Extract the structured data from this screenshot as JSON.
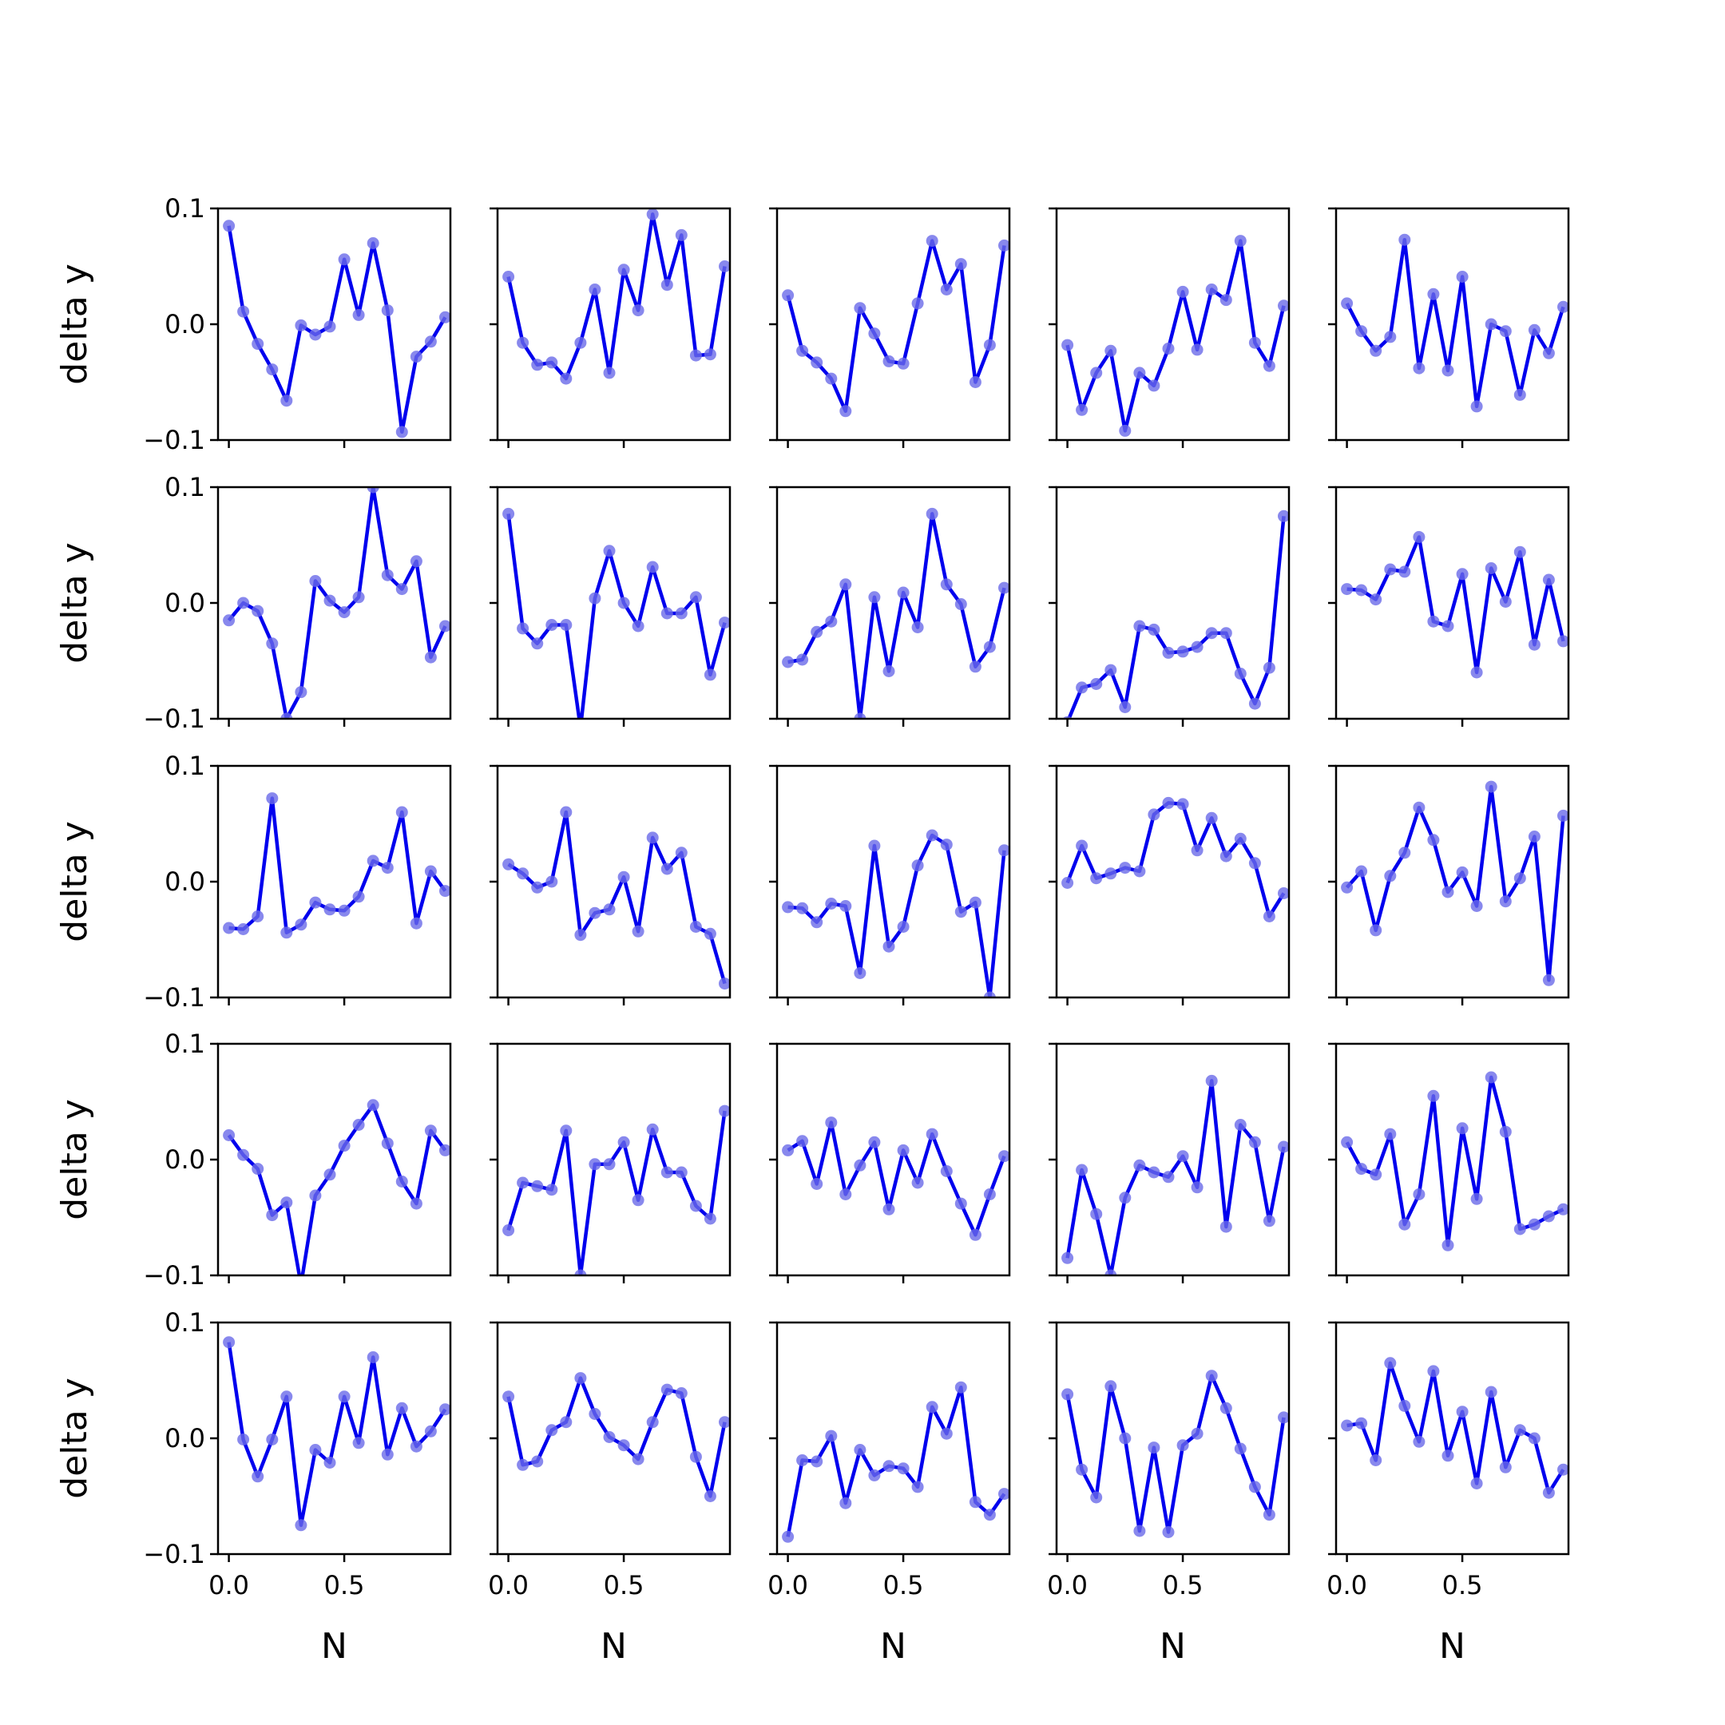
{
  "chart_data": {
    "type": "line",
    "grid": false,
    "rows": 5,
    "cols": 5,
    "x": [
      0,
      0.0625,
      0.125,
      0.1875,
      0.25,
      0.3125,
      0.375,
      0.4375,
      0.5,
      0.5625,
      0.625,
      0.6875,
      0.75,
      0.8125,
      0.875,
      0.9375
    ],
    "xlim": [
      -0.047,
      0.96
    ],
    "ylim": [
      -0.1,
      0.1
    ],
    "xticks": [
      0.0,
      0.5
    ],
    "xtick_labels": [
      "0.0",
      "0.5"
    ],
    "yticks": [
      -0.1,
      0.0,
      0.1
    ],
    "ytick_labels": [
      "−0.1",
      "0.0",
      "0.1"
    ],
    "xlabel": "N",
    "ylabel": "delta y",
    "line_color": "#0000ee",
    "marker_color": "#6a6ae8",
    "panels": [
      [
        0.085,
        0.011,
        -0.017,
        -0.039,
        -0.066,
        -0.001,
        -0.009,
        -0.002,
        0.056,
        0.008,
        0.07,
        0.012,
        -0.093,
        -0.028,
        -0.015,
        0.006
      ],
      [
        0.041,
        -0.016,
        -0.035,
        -0.033,
        -0.047,
        -0.016,
        0.03,
        -0.042,
        0.047,
        0.012,
        0.095,
        0.034,
        0.077,
        -0.027,
        -0.026,
        0.05
      ],
      [
        0.025,
        -0.023,
        -0.033,
        -0.047,
        -0.075,
        0.014,
        -0.008,
        -0.032,
        -0.034,
        0.018,
        0.072,
        0.03,
        0.052,
        -0.05,
        -0.018,
        0.068
      ],
      [
        -0.018,
        -0.074,
        -0.042,
        -0.023,
        -0.092,
        -0.042,
        -0.053,
        -0.021,
        0.028,
        -0.022,
        0.03,
        0.021,
        0.072,
        -0.016,
        -0.036,
        0.016
      ],
      [
        0.018,
        -0.006,
        -0.023,
        -0.011,
        0.073,
        -0.038,
        0.026,
        -0.04,
        0.041,
        -0.071,
        0.0,
        -0.006,
        -0.061,
        -0.005,
        -0.025,
        0.015
      ],
      [
        -0.015,
        0.0,
        -0.007,
        -0.035,
        -0.1,
        -0.077,
        0.019,
        0.002,
        -0.008,
        0.005,
        0.1,
        0.024,
        0.012,
        0.036,
        -0.047,
        -0.02
      ],
      [
        0.077,
        -0.022,
        -0.035,
        -0.019,
        -0.019,
        -0.108,
        0.004,
        0.045,
        0.0,
        -0.02,
        0.031,
        -0.009,
        -0.009,
        0.005,
        -0.062,
        -0.017
      ],
      [
        -0.051,
        -0.049,
        -0.025,
        -0.016,
        0.016,
        -0.1,
        0.005,
        -0.059,
        0.009,
        -0.021,
        0.077,
        0.016,
        -0.001,
        -0.055,
        -0.038,
        0.013
      ],
      [
        -0.103,
        -0.073,
        -0.07,
        -0.058,
        -0.09,
        -0.02,
        -0.023,
        -0.043,
        -0.042,
        -0.038,
        -0.026,
        -0.026,
        -0.061,
        -0.087,
        -0.056,
        0.075
      ],
      [
        0.012,
        0.011,
        0.003,
        0.029,
        0.027,
        0.057,
        -0.016,
        -0.02,
        0.025,
        -0.06,
        0.03,
        0.001,
        0.044,
        -0.036,
        0.02,
        -0.033
      ]
    ],
    "panels_2": [
      [
        -0.04,
        -0.041,
        -0.03,
        0.072,
        -0.044,
        -0.037,
        -0.018,
        -0.024,
        -0.025,
        -0.013,
        0.018,
        0.012,
        0.06,
        -0.036,
        0.009,
        -0.008
      ],
      [
        0.015,
        0.007,
        -0.005,
        0.0,
        0.06,
        -0.046,
        -0.027,
        -0.024,
        0.004,
        -0.043,
        0.038,
        0.011,
        0.025,
        -0.039,
        -0.045,
        -0.088
      ],
      [
        -0.022,
        -0.023,
        -0.035,
        -0.019,
        -0.021,
        -0.079,
        0.031,
        -0.056,
        -0.039,
        0.014,
        0.04,
        0.032,
        -0.026,
        -0.018,
        -0.1,
        0.027
      ],
      [
        -0.001,
        0.031,
        0.003,
        0.007,
        0.012,
        0.009,
        0.058,
        0.068,
        0.067,
        0.027,
        0.055,
        0.022,
        0.037,
        0.016,
        -0.03,
        -0.01
      ],
      [
        -0.005,
        0.009,
        -0.042,
        0.005,
        0.025,
        0.064,
        0.036,
        -0.009,
        0.008,
        -0.021,
        0.082,
        -0.017,
        0.003,
        0.039,
        -0.085,
        0.057
      ],
      [
        0.021,
        0.004,
        -0.008,
        -0.048,
        -0.037,
        -0.108,
        -0.031,
        -0.013,
        0.012,
        0.03,
        0.047,
        0.014,
        -0.019,
        -0.038,
        0.025,
        0.008
      ],
      [
        -0.061,
        -0.02,
        -0.023,
        -0.026,
        0.025,
        -0.1,
        -0.004,
        -0.004,
        0.015,
        -0.035,
        0.026,
        -0.011,
        -0.011,
        -0.04,
        -0.051,
        0.042
      ],
      [
        0.008,
        0.016,
        -0.021,
        0.032,
        -0.03,
        -0.005,
        0.015,
        -0.043,
        0.008,
        -0.02,
        0.022,
        -0.01,
        -0.038,
        -0.065,
        -0.03,
        0.003
      ],
      [
        -0.085,
        -0.009,
        -0.047,
        -0.1,
        -0.033,
        -0.005,
        -0.011,
        -0.015,
        0.003,
        -0.024,
        0.068,
        -0.058,
        0.03,
        0.015,
        -0.053,
        0.011
      ],
      [
        0.015,
        -0.008,
        -0.013,
        0.022,
        -0.056,
        -0.03,
        0.055,
        -0.074,
        0.027,
        -0.034,
        0.071,
        0.024,
        -0.06,
        -0.056,
        -0.049,
        -0.043
      ]
    ],
    "panels_3": [
      [
        0.083,
        -0.001,
        -0.033,
        -0.001,
        0.036,
        -0.075,
        -0.01,
        -0.021,
        0.036,
        -0.004,
        0.07,
        -0.014,
        0.026,
        -0.007,
        0.006,
        0.025
      ],
      [
        0.036,
        -0.023,
        -0.02,
        0.007,
        0.014,
        0.052,
        0.021,
        0.001,
        -0.006,
        -0.018,
        0.014,
        0.042,
        0.039,
        -0.016,
        -0.05,
        0.014
      ],
      [
        -0.085,
        -0.019,
        -0.02,
        0.002,
        -0.056,
        -0.01,
        -0.032,
        -0.024,
        -0.026,
        -0.042,
        0.027,
        0.004,
        0.044,
        -0.055,
        -0.066,
        -0.048
      ],
      [
        0.038,
        -0.027,
        -0.051,
        0.045,
        0.0,
        -0.08,
        -0.008,
        -0.081,
        -0.006,
        0.004,
        0.054,
        0.026,
        -0.009,
        -0.042,
        -0.066,
        0.018
      ],
      [
        0.011,
        0.013,
        -0.019,
        0.065,
        0.028,
        -0.003,
        0.058,
        -0.015,
        0.023,
        -0.039,
        0.04,
        -0.025,
        0.007,
        0.0,
        -0.047,
        -0.027
      ]
    ]
  }
}
